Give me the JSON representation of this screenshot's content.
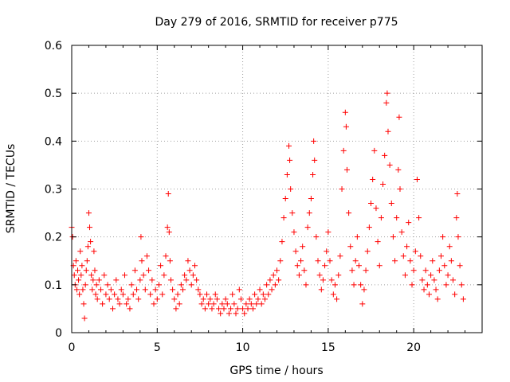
{
  "chart_data": {
    "type": "scatter",
    "title": "Day 279 of 2016, SRMTID for receiver p775",
    "xlabel": "GPS time / hours",
    "ylabel": "SRMTID / TECUs",
    "xlim": [
      0,
      24
    ],
    "ylim": [
      0,
      0.6
    ],
    "xticks": [
      "0",
      "5",
      "10",
      "15",
      "20"
    ],
    "yticks": [
      "0",
      "0.1",
      "0.2",
      "0.3",
      "0.4",
      "0.5",
      "0.6"
    ],
    "grid": true,
    "marker": "+",
    "color": "#ff0000",
    "series": [
      {
        "name": "SRMTID",
        "points": [
          [
            0.0,
            0.22
          ],
          [
            0.05,
            0.2
          ],
          [
            0.1,
            0.14
          ],
          [
            0.15,
            0.12
          ],
          [
            0.2,
            0.1
          ],
          [
            0.25,
            0.15
          ],
          [
            0.3,
            0.09
          ],
          [
            0.35,
            0.13
          ],
          [
            0.4,
            0.11
          ],
          [
            0.45,
            0.08
          ],
          [
            0.5,
            0.17
          ],
          [
            0.55,
            0.12
          ],
          [
            0.6,
            0.14
          ],
          [
            0.65,
            0.09
          ],
          [
            0.7,
            0.06
          ],
          [
            0.75,
            0.03
          ],
          [
            0.8,
            0.1
          ],
          [
            0.85,
            0.13
          ],
          [
            0.9,
            0.15
          ],
          [
            0.95,
            0.18
          ],
          [
            1.0,
            0.25
          ],
          [
            1.05,
            0.22
          ],
          [
            1.1,
            0.19
          ],
          [
            1.15,
            0.12
          ],
          [
            1.2,
            0.09
          ],
          [
            1.25,
            0.11
          ],
          [
            1.3,
            0.17
          ],
          [
            1.35,
            0.13
          ],
          [
            1.4,
            0.08
          ],
          [
            1.45,
            0.1
          ],
          [
            1.5,
            0.07
          ],
          [
            1.6,
            0.11
          ],
          [
            1.7,
            0.09
          ],
          [
            1.8,
            0.06
          ],
          [
            1.9,
            0.12
          ],
          [
            2.0,
            0.08
          ],
          [
            2.1,
            0.1
          ],
          [
            2.2,
            0.07
          ],
          [
            2.3,
            0.09
          ],
          [
            2.4,
            0.05
          ],
          [
            2.5,
            0.08
          ],
          [
            2.6,
            0.11
          ],
          [
            2.7,
            0.07
          ],
          [
            2.8,
            0.06
          ],
          [
            2.9,
            0.09
          ],
          [
            3.0,
            0.08
          ],
          [
            3.1,
            0.12
          ],
          [
            3.2,
            0.06
          ],
          [
            3.3,
            0.07
          ],
          [
            3.4,
            0.05
          ],
          [
            3.5,
            0.1
          ],
          [
            3.6,
            0.08
          ],
          [
            3.7,
            0.13
          ],
          [
            3.8,
            0.09
          ],
          [
            3.9,
            0.07
          ],
          [
            4.0,
            0.11
          ],
          [
            4.05,
            0.2
          ],
          [
            4.1,
            0.15
          ],
          [
            4.2,
            0.12
          ],
          [
            4.3,
            0.09
          ],
          [
            4.4,
            0.16
          ],
          [
            4.5,
            0.13
          ],
          [
            4.6,
            0.08
          ],
          [
            4.7,
            0.11
          ],
          [
            4.8,
            0.06
          ],
          [
            4.9,
            0.09
          ],
          [
            5.0,
            0.07
          ],
          [
            5.1,
            0.1
          ],
          [
            5.2,
            0.14
          ],
          [
            5.3,
            0.08
          ],
          [
            5.4,
            0.12
          ],
          [
            5.5,
            0.16
          ],
          [
            5.6,
            0.22
          ],
          [
            5.65,
            0.29
          ],
          [
            5.7,
            0.21
          ],
          [
            5.75,
            0.15
          ],
          [
            5.8,
            0.11
          ],
          [
            5.9,
            0.09
          ],
          [
            6.0,
            0.07
          ],
          [
            6.1,
            0.05
          ],
          [
            6.2,
            0.08
          ],
          [
            6.3,
            0.06
          ],
          [
            6.4,
            0.1
          ],
          [
            6.5,
            0.09
          ],
          [
            6.6,
            0.12
          ],
          [
            6.7,
            0.11
          ],
          [
            6.8,
            0.15
          ],
          [
            6.9,
            0.13
          ],
          [
            7.0,
            0.1
          ],
          [
            7.1,
            0.12
          ],
          [
            7.2,
            0.14
          ],
          [
            7.3,
            0.11
          ],
          [
            7.4,
            0.09
          ],
          [
            7.5,
            0.08
          ],
          [
            7.6,
            0.06
          ],
          [
            7.7,
            0.07
          ],
          [
            7.8,
            0.05
          ],
          [
            7.9,
            0.08
          ],
          [
            8.0,
            0.06
          ],
          [
            8.1,
            0.07
          ],
          [
            8.2,
            0.05
          ],
          [
            8.3,
            0.06
          ],
          [
            8.4,
            0.08
          ],
          [
            8.5,
            0.07
          ],
          [
            8.6,
            0.05
          ],
          [
            8.7,
            0.04
          ],
          [
            8.8,
            0.06
          ],
          [
            8.9,
            0.05
          ],
          [
            9.0,
            0.07
          ],
          [
            9.1,
            0.06
          ],
          [
            9.2,
            0.04
          ],
          [
            9.3,
            0.05
          ],
          [
            9.4,
            0.08
          ],
          [
            9.5,
            0.06
          ],
          [
            9.6,
            0.04
          ],
          [
            9.7,
            0.05
          ],
          [
            9.8,
            0.09
          ],
          [
            9.9,
            0.07
          ],
          [
            10.0,
            0.05
          ],
          [
            10.1,
            0.04
          ],
          [
            10.2,
            0.06
          ],
          [
            10.3,
            0.05
          ],
          [
            10.4,
            0.07
          ],
          [
            10.5,
            0.06
          ],
          [
            10.6,
            0.05
          ],
          [
            10.7,
            0.08
          ],
          [
            10.8,
            0.06
          ],
          [
            10.9,
            0.07
          ],
          [
            11.0,
            0.09
          ],
          [
            11.1,
            0.06
          ],
          [
            11.2,
            0.08
          ],
          [
            11.3,
            0.07
          ],
          [
            11.4,
            0.1
          ],
          [
            11.5,
            0.08
          ],
          [
            11.6,
            0.11
          ],
          [
            11.7,
            0.09
          ],
          [
            11.8,
            0.12
          ],
          [
            11.9,
            0.1
          ],
          [
            12.0,
            0.13
          ],
          [
            12.1,
            0.11
          ],
          [
            12.2,
            0.15
          ],
          [
            12.3,
            0.19
          ],
          [
            12.4,
            0.24
          ],
          [
            12.5,
            0.28
          ],
          [
            12.6,
            0.33
          ],
          [
            12.7,
            0.39
          ],
          [
            12.75,
            0.36
          ],
          [
            12.8,
            0.3
          ],
          [
            12.9,
            0.25
          ],
          [
            13.0,
            0.21
          ],
          [
            13.1,
            0.17
          ],
          [
            13.2,
            0.14
          ],
          [
            13.3,
            0.12
          ],
          [
            13.4,
            0.15
          ],
          [
            13.5,
            0.18
          ],
          [
            13.6,
            0.13
          ],
          [
            13.7,
            0.1
          ],
          [
            13.8,
            0.22
          ],
          [
            13.9,
            0.25
          ],
          [
            14.0,
            0.28
          ],
          [
            14.1,
            0.33
          ],
          [
            14.15,
            0.4
          ],
          [
            14.2,
            0.36
          ],
          [
            14.3,
            0.2
          ],
          [
            14.4,
            0.15
          ],
          [
            14.5,
            0.12
          ],
          [
            14.6,
            0.09
          ],
          [
            14.7,
            0.11
          ],
          [
            14.8,
            0.14
          ],
          [
            14.9,
            0.17
          ],
          [
            15.0,
            0.21
          ],
          [
            15.1,
            0.15
          ],
          [
            15.2,
            0.11
          ],
          [
            15.3,
            0.08
          ],
          [
            15.4,
            0.1
          ],
          [
            15.5,
            0.07
          ],
          [
            15.6,
            0.12
          ],
          [
            15.7,
            0.16
          ],
          [
            15.8,
            0.3
          ],
          [
            15.9,
            0.38
          ],
          [
            16.0,
            0.46
          ],
          [
            16.05,
            0.43
          ],
          [
            16.1,
            0.34
          ],
          [
            16.2,
            0.25
          ],
          [
            16.3,
            0.18
          ],
          [
            16.4,
            0.13
          ],
          [
            16.5,
            0.1
          ],
          [
            16.6,
            0.15
          ],
          [
            16.7,
            0.2
          ],
          [
            16.8,
            0.14
          ],
          [
            16.9,
            0.1
          ],
          [
            17.0,
            0.06
          ],
          [
            17.1,
            0.09
          ],
          [
            17.2,
            0.13
          ],
          [
            17.3,
            0.17
          ],
          [
            17.4,
            0.22
          ],
          [
            17.5,
            0.27
          ],
          [
            17.6,
            0.32
          ],
          [
            17.7,
            0.38
          ],
          [
            17.8,
            0.26
          ],
          [
            17.9,
            0.19
          ],
          [
            18.0,
            0.14
          ],
          [
            18.1,
            0.24
          ],
          [
            18.2,
            0.31
          ],
          [
            18.3,
            0.37
          ],
          [
            18.4,
            0.48
          ],
          [
            18.45,
            0.5
          ],
          [
            18.5,
            0.42
          ],
          [
            18.6,
            0.35
          ],
          [
            18.7,
            0.27
          ],
          [
            18.8,
            0.2
          ],
          [
            18.9,
            0.15
          ],
          [
            19.0,
            0.24
          ],
          [
            19.1,
            0.34
          ],
          [
            19.15,
            0.45
          ],
          [
            19.2,
            0.3
          ],
          [
            19.3,
            0.21
          ],
          [
            19.4,
            0.16
          ],
          [
            19.5,
            0.12
          ],
          [
            19.6,
            0.18
          ],
          [
            19.7,
            0.23
          ],
          [
            19.8,
            0.15
          ],
          [
            19.9,
            0.1
          ],
          [
            20.0,
            0.13
          ],
          [
            20.1,
            0.17
          ],
          [
            20.2,
            0.32
          ],
          [
            20.3,
            0.24
          ],
          [
            20.4,
            0.16
          ],
          [
            20.5,
            0.11
          ],
          [
            20.6,
            0.09
          ],
          [
            20.7,
            0.13
          ],
          [
            20.8,
            0.1
          ],
          [
            20.9,
            0.08
          ],
          [
            21.0,
            0.12
          ],
          [
            21.1,
            0.15
          ],
          [
            21.2,
            0.11
          ],
          [
            21.3,
            0.09
          ],
          [
            21.4,
            0.07
          ],
          [
            21.5,
            0.13
          ],
          [
            21.6,
            0.16
          ],
          [
            21.7,
            0.2
          ],
          [
            21.8,
            0.14
          ],
          [
            21.9,
            0.1
          ],
          [
            22.0,
            0.12
          ],
          [
            22.1,
            0.18
          ],
          [
            22.2,
            0.15
          ],
          [
            22.3,
            0.11
          ],
          [
            22.4,
            0.08
          ],
          [
            22.5,
            0.24
          ],
          [
            22.55,
            0.29
          ],
          [
            22.6,
            0.2
          ],
          [
            22.7,
            0.14
          ],
          [
            22.8,
            0.1
          ],
          [
            22.9,
            0.07
          ]
        ]
      }
    ]
  }
}
